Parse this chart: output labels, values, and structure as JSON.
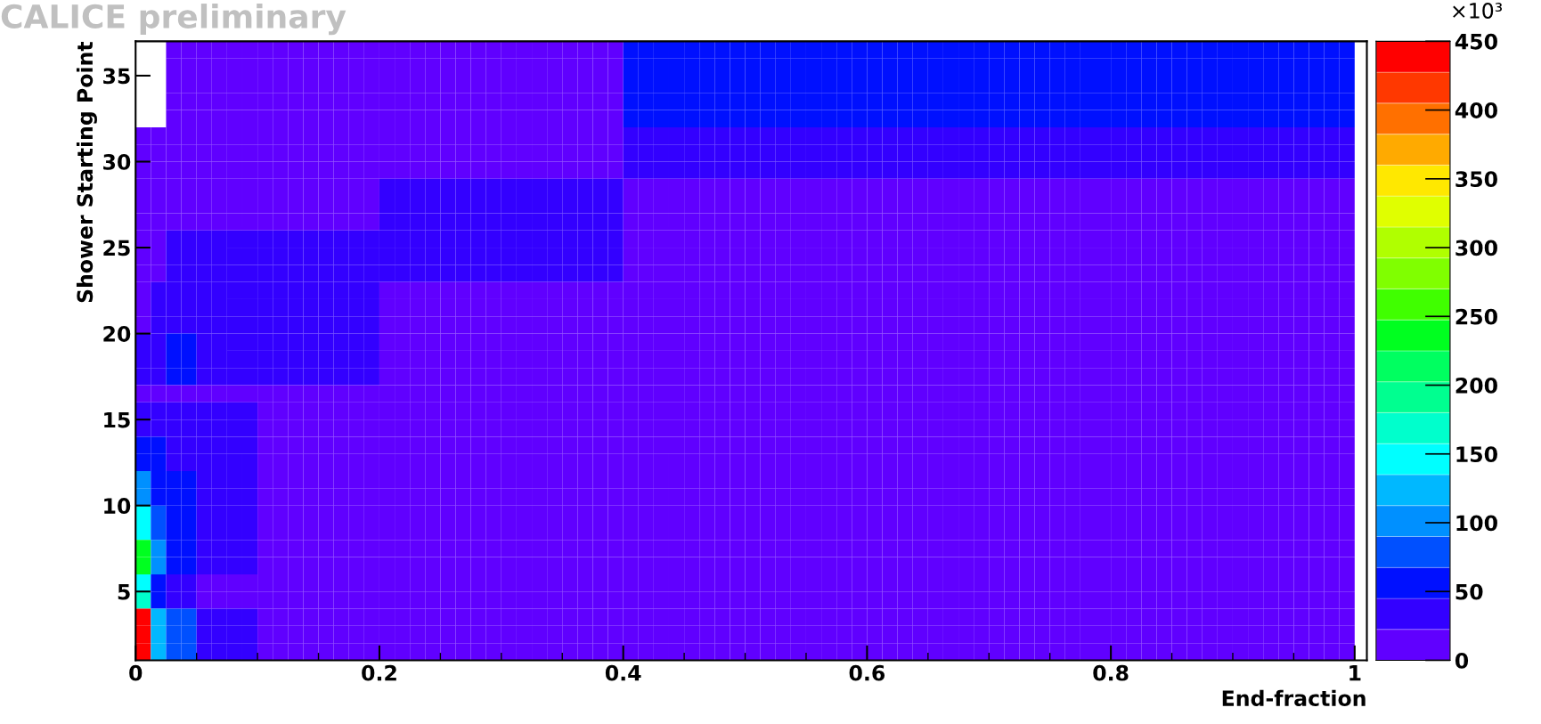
{
  "chart_data": {
    "type": "heatmap",
    "title": "CALICE preliminary",
    "xlabel": "End-fraction",
    "ylabel": "Shower Starting Point",
    "clabel": "×10³",
    "x": [
      0.00625,
      0.01875,
      0.03125,
      0.04375,
      0.05625,
      0.06875,
      0.08125,
      0.09375,
      0.10625,
      0.11875,
      0.13125,
      0.14375,
      0.15625,
      0.16875,
      0.18125,
      0.19375,
      0.20625,
      0.21875,
      0.23125,
      0.24375,
      0.25625,
      0.26875,
      0.28125,
      0.29375,
      0.30625,
      0.31875,
      0.33125,
      0.34375,
      0.35625,
      0.36875,
      0.38125,
      0.39375,
      0.40625,
      0.41875,
      0.43125,
      0.44375,
      0.45625,
      0.46875,
      0.48125,
      0.49375,
      0.50625,
      0.51875,
      0.53125,
      0.54375,
      0.55625,
      0.56875,
      0.58125,
      0.59375,
      0.60625,
      0.61875,
      0.63125,
      0.64375,
      0.65625,
      0.66875,
      0.68125,
      0.69375,
      0.70625,
      0.71875,
      0.73125,
      0.74375,
      0.75625,
      0.76875,
      0.78125,
      0.79375,
      0.80625,
      0.81875,
      0.83125,
      0.84375,
      0.85625,
      0.86875,
      0.88125,
      0.89375,
      0.90625,
      0.91875,
      0.93125,
      0.94375,
      0.95625,
      0.96875,
      0.98125,
      0.99375
    ],
    "y": [
      36.5,
      35.5,
      34.5,
      33.5,
      32.5,
      31.5,
      30.5,
      29.5,
      28.5,
      27.5,
      26.5,
      25.5,
      24.5,
      23.5,
      22.5,
      21.5,
      20.5,
      19.5,
      18.5,
      17.5,
      16.5,
      15.5,
      14.5,
      13.5,
      12.5,
      11.5,
      10.5,
      9.5,
      8.5,
      7.5,
      6.5,
      5.5,
      4.5,
      3.5,
      2.5,
      1.5
    ],
    "cells": [
      [
        null,
        null,
        11,
        11,
        11,
        11,
        11,
        11,
        11,
        11,
        11,
        11,
        11,
        11,
        11,
        11,
        11,
        11,
        11,
        11,
        11,
        11,
        11,
        11,
        11,
        11,
        11,
        11,
        11,
        11,
        11,
        11,
        56,
        56,
        56,
        56,
        56,
        56,
        56,
        56,
        56,
        56,
        56,
        56,
        56,
        56,
        56,
        56,
        56,
        56,
        56,
        56,
        56,
        56,
        56,
        56,
        56,
        56,
        56,
        56,
        56,
        56,
        56,
        56,
        56,
        56,
        56,
        56,
        56,
        56,
        56,
        56,
        56,
        56,
        56,
        56,
        56,
        56,
        56,
        56
      ],
      [
        null,
        null,
        11,
        11,
        11,
        11,
        11,
        11,
        11,
        11,
        11,
        11,
        11,
        11,
        11,
        11,
        11,
        11,
        11,
        11,
        11,
        11,
        11,
        11,
        11,
        11,
        11,
        11,
        11,
        11,
        11,
        11,
        56,
        56,
        56,
        56,
        56,
        56,
        56,
        56,
        56,
        56,
        56,
        56,
        56,
        56,
        56,
        56,
        56,
        56,
        56,
        56,
        56,
        56,
        56,
        56,
        56,
        56,
        56,
        56,
        56,
        56,
        56,
        56,
        56,
        56,
        56,
        56,
        56,
        56,
        56,
        56,
        56,
        56,
        56,
        56,
        56,
        56,
        56,
        56
      ],
      [
        null,
        null,
        11,
        11,
        11,
        11,
        11,
        11,
        11,
        11,
        11,
        11,
        11,
        11,
        11,
        11,
        11,
        11,
        11,
        11,
        11,
        11,
        11,
        11,
        11,
        11,
        11,
        11,
        11,
        11,
        11,
        11,
        56,
        56,
        56,
        56,
        56,
        56,
        56,
        56,
        56,
        56,
        56,
        56,
        56,
        56,
        56,
        56,
        56,
        56,
        56,
        56,
        56,
        56,
        56,
        56,
        56,
        56,
        56,
        56,
        56,
        56,
        56,
        56,
        56,
        56,
        56,
        56,
        56,
        56,
        56,
        56,
        56,
        56,
        56,
        56,
        56,
        56,
        56,
        56
      ],
      [
        null,
        null,
        11,
        11,
        11,
        11,
        11,
        11,
        11,
        11,
        11,
        11,
        11,
        11,
        11,
        11,
        11,
        11,
        11,
        11,
        11,
        11,
        11,
        11,
        11,
        11,
        11,
        11,
        11,
        11,
        11,
        11,
        56,
        56,
        56,
        56,
        56,
        56,
        56,
        56,
        56,
        56,
        56,
        56,
        56,
        56,
        56,
        56,
        56,
        56,
        56,
        56,
        56,
        56,
        56,
        56,
        56,
        56,
        56,
        56,
        56,
        56,
        56,
        56,
        56,
        56,
        56,
        56,
        56,
        56,
        56,
        56,
        56,
        56,
        56,
        56,
        56,
        56,
        56,
        56
      ],
      [
        null,
        null,
        11,
        11,
        11,
        11,
        11,
        11,
        11,
        11,
        11,
        11,
        11,
        11,
        11,
        11,
        11,
        11,
        11,
        11,
        11,
        11,
        11,
        11,
        11,
        11,
        11,
        11,
        11,
        11,
        11,
        11,
        56,
        56,
        56,
        56,
        56,
        56,
        56,
        56,
        56,
        56,
        56,
        56,
        56,
        56,
        56,
        56,
        56,
        56,
        56,
        56,
        56,
        56,
        56,
        56,
        56,
        56,
        56,
        56,
        56,
        56,
        56,
        56,
        56,
        56,
        56,
        56,
        56,
        56,
        56,
        56,
        56,
        56,
        56,
        56,
        56,
        56,
        56,
        56
      ],
      [
        11,
        11,
        11,
        11,
        11,
        11,
        11,
        11,
        11,
        11,
        11,
        11,
        11,
        11,
        11,
        11,
        11,
        11,
        11,
        11,
        11,
        11,
        11,
        11,
        11,
        11,
        11,
        11,
        11,
        11,
        11,
        11,
        34,
        34,
        34,
        34,
        34,
        34,
        34,
        34,
        34,
        34,
        34,
        34,
        34,
        34,
        34,
        34,
        34,
        34,
        34,
        34,
        34,
        34,
        34,
        34,
        34,
        34,
        34,
        34,
        34,
        34,
        34,
        34,
        34,
        34,
        34,
        34,
        34,
        34,
        34,
        34,
        34,
        34,
        34,
        34,
        34,
        34,
        34,
        34
      ],
      [
        11,
        11,
        11,
        11,
        11,
        11,
        11,
        11,
        11,
        11,
        11,
        11,
        11,
        11,
        11,
        11,
        11,
        11,
        11,
        11,
        11,
        11,
        11,
        11,
        11,
        11,
        11,
        11,
        11,
        11,
        11,
        11,
        34,
        34,
        34,
        34,
        34,
        34,
        34,
        34,
        34,
        34,
        34,
        34,
        34,
        34,
        34,
        34,
        34,
        34,
        34,
        34,
        34,
        34,
        34,
        34,
        34,
        34,
        34,
        34,
        34,
        34,
        34,
        34,
        34,
        34,
        34,
        34,
        34,
        34,
        34,
        34,
        34,
        34,
        34,
        34,
        34,
        34,
        34,
        34
      ],
      [
        11,
        11,
        11,
        11,
        11,
        11,
        11,
        11,
        11,
        11,
        11,
        11,
        11,
        11,
        11,
        11,
        11,
        11,
        11,
        11,
        11,
        11,
        11,
        11,
        11,
        11,
        11,
        11,
        11,
        11,
        11,
        11,
        34,
        34,
        34,
        34,
        34,
        34,
        34,
        34,
        34,
        34,
        34,
        34,
        34,
        34,
        34,
        34,
        34,
        34,
        34,
        34,
        34,
        34,
        34,
        34,
        34,
        34,
        34,
        34,
        34,
        34,
        34,
        34,
        34,
        34,
        34,
        34,
        34,
        34,
        34,
        34,
        34,
        34,
        34,
        34,
        34,
        34,
        34,
        34
      ],
      [
        11,
        11,
        11,
        11,
        11,
        11,
        11,
        11,
        11,
        11,
        11,
        11,
        11,
        11,
        11,
        11,
        34,
        34,
        34,
        34,
        34,
        34,
        34,
        34,
        34,
        34,
        34,
        34,
        34,
        34,
        34,
        34,
        11,
        11,
        11,
        11,
        11,
        11,
        11,
        11,
        11,
        11,
        11,
        11,
        11,
        11,
        11,
        11,
        11,
        11,
        11,
        11,
        11,
        11,
        11,
        11,
        11,
        11,
        11,
        11,
        11,
        11,
        11,
        11,
        11,
        11,
        11,
        11,
        11,
        11,
        11,
        11,
        11,
        11,
        11,
        11,
        11,
        11,
        11,
        11
      ],
      [
        11,
        11,
        11,
        11,
        11,
        11,
        11,
        11,
        11,
        11,
        11,
        11,
        11,
        11,
        11,
        11,
        34,
        34,
        34,
        34,
        34,
        34,
        34,
        34,
        34,
        34,
        34,
        34,
        34,
        34,
        34,
        34,
        11,
        11,
        11,
        11,
        11,
        11,
        11,
        11,
        11,
        11,
        11,
        11,
        11,
        11,
        11,
        11,
        11,
        11,
        11,
        11,
        11,
        11,
        11,
        11,
        11,
        11,
        11,
        11,
        11,
        11,
        11,
        11,
        11,
        11,
        11,
        11,
        11,
        11,
        11,
        11,
        11,
        11,
        11,
        11,
        11,
        11,
        11,
        11
      ],
      [
        11,
        11,
        11,
        11,
        11,
        11,
        11,
        11,
        11,
        11,
        11,
        11,
        11,
        11,
        11,
        11,
        34,
        34,
        34,
        34,
        34,
        34,
        34,
        34,
        34,
        34,
        34,
        34,
        34,
        34,
        34,
        34,
        11,
        11,
        11,
        11,
        11,
        11,
        11,
        11,
        11,
        11,
        11,
        11,
        11,
        11,
        11,
        11,
        11,
        11,
        11,
        11,
        11,
        11,
        11,
        11,
        11,
        11,
        11,
        11,
        11,
        11,
        11,
        11,
        11,
        11,
        11,
        11,
        11,
        11,
        11,
        11,
        11,
        11,
        11,
        11,
        11,
        11,
        11,
        11
      ],
      [
        11,
        11,
        34,
        34,
        34,
        34,
        34,
        34,
        34,
        34,
        34,
        34,
        34,
        34,
        34,
        34,
        34,
        34,
        34,
        34,
        34,
        34,
        34,
        34,
        34,
        34,
        34,
        34,
        34,
        34,
        34,
        34,
        11,
        11,
        11,
        11,
        11,
        11,
        11,
        11,
        11,
        11,
        11,
        11,
        11,
        11,
        11,
        11,
        11,
        11,
        11,
        11,
        11,
        11,
        11,
        11,
        11,
        11,
        11,
        11,
        11,
        11,
        11,
        11,
        11,
        11,
        11,
        11,
        11,
        11,
        11,
        11,
        11,
        11,
        11,
        11,
        11,
        11,
        11,
        11
      ],
      [
        11,
        11,
        34,
        34,
        34,
        34,
        34,
        34,
        34,
        34,
        34,
        34,
        34,
        34,
        34,
        34,
        34,
        34,
        34,
        34,
        34,
        34,
        34,
        34,
        34,
        34,
        34,
        34,
        34,
        34,
        34,
        34,
        11,
        11,
        11,
        11,
        11,
        11,
        11,
        11,
        11,
        11,
        11,
        11,
        11,
        11,
        11,
        11,
        11,
        11,
        11,
        11,
        11,
        11,
        11,
        11,
        11,
        11,
        11,
        11,
        11,
        11,
        11,
        11,
        11,
        11,
        11,
        11,
        11,
        11,
        11,
        11,
        11,
        11,
        11,
        11,
        11,
        11,
        11,
        11
      ],
      [
        11,
        11,
        34,
        34,
        34,
        34,
        34,
        34,
        34,
        34,
        34,
        34,
        34,
        34,
        34,
        34,
        34,
        34,
        34,
        34,
        34,
        34,
        34,
        34,
        34,
        34,
        34,
        34,
        34,
        34,
        34,
        34,
        11,
        11,
        11,
        11,
        11,
        11,
        11,
        11,
        11,
        11,
        11,
        11,
        11,
        11,
        11,
        11,
        11,
        11,
        11,
        11,
        11,
        11,
        11,
        11,
        11,
        11,
        11,
        11,
        11,
        11,
        11,
        11,
        11,
        11,
        11,
        11,
        11,
        11,
        11,
        11,
        11,
        11,
        11,
        11,
        11,
        11,
        11,
        11
      ],
      [
        11,
        34,
        34,
        34,
        34,
        34,
        34,
        34,
        34,
        34,
        34,
        34,
        34,
        34,
        34,
        34,
        11,
        11,
        11,
        11,
        11,
        11,
        11,
        11,
        11,
        11,
        11,
        11,
        11,
        11,
        11,
        11,
        11,
        11,
        11,
        11,
        11,
        11,
        11,
        11,
        11,
        11,
        11,
        11,
        11,
        11,
        11,
        11,
        11,
        11,
        11,
        11,
        11,
        11,
        11,
        11,
        11,
        11,
        11,
        11,
        11,
        11,
        11,
        11,
        11,
        11,
        11,
        11,
        11,
        11,
        11,
        11,
        11,
        11,
        11,
        11,
        11,
        11,
        11,
        11
      ],
      [
        11,
        34,
        34,
        34,
        34,
        34,
        34,
        34,
        34,
        34,
        34,
        34,
        34,
        34,
        34,
        34,
        11,
        11,
        11,
        11,
        11,
        11,
        11,
        11,
        11,
        11,
        11,
        11,
        11,
        11,
        11,
        11,
        11,
        11,
        11,
        11,
        11,
        11,
        11,
        11,
        11,
        11,
        11,
        11,
        11,
        11,
        11,
        11,
        11,
        11,
        11,
        11,
        11,
        11,
        11,
        11,
        11,
        11,
        11,
        11,
        11,
        11,
        11,
        11,
        11,
        11,
        11,
        11,
        11,
        11,
        11,
        11,
        11,
        11,
        11,
        11,
        11,
        11,
        11,
        11
      ],
      [
        11,
        34,
        34,
        34,
        34,
        34,
        34,
        34,
        34,
        34,
        34,
        34,
        34,
        34,
        34,
        34,
        11,
        11,
        11,
        11,
        11,
        11,
        11,
        11,
        11,
        11,
        11,
        11,
        11,
        11,
        11,
        11,
        11,
        11,
        11,
        11,
        11,
        11,
        11,
        11,
        11,
        11,
        11,
        11,
        11,
        11,
        11,
        11,
        11,
        11,
        11,
        11,
        11,
        11,
        11,
        11,
        11,
        11,
        11,
        11,
        11,
        11,
        11,
        11,
        11,
        11,
        11,
        11,
        11,
        11,
        11,
        11,
        11,
        11,
        11,
        11,
        11,
        11,
        11,
        11
      ],
      [
        34,
        34,
        56,
        56,
        34,
        34,
        34,
        34,
        34,
        34,
        34,
        34,
        34,
        34,
        34,
        34,
        11,
        11,
        11,
        11,
        11,
        11,
        11,
        11,
        11,
        11,
        11,
        11,
        11,
        11,
        11,
        11,
        11,
        11,
        11,
        11,
        11,
        11,
        11,
        11,
        11,
        11,
        11,
        11,
        11,
        11,
        11,
        11,
        11,
        11,
        11,
        11,
        11,
        11,
        11,
        11,
        11,
        11,
        11,
        11,
        11,
        11,
        11,
        11,
        11,
        11,
        11,
        11,
        11,
        11,
        11,
        11,
        11,
        11,
        11,
        11,
        11,
        11,
        11,
        11
      ],
      [
        34,
        34,
        56,
        56,
        34,
        34,
        34,
        34,
        34,
        34,
        34,
        34,
        34,
        34,
        34,
        34,
        11,
        11,
        11,
        11,
        11,
        11,
        11,
        11,
        11,
        11,
        11,
        11,
        11,
        11,
        11,
        11,
        11,
        11,
        11,
        11,
        11,
        11,
        11,
        11,
        11,
        11,
        11,
        11,
        11,
        11,
        11,
        11,
        11,
        11,
        11,
        11,
        11,
        11,
        11,
        11,
        11,
        11,
        11,
        11,
        11,
        11,
        11,
        11,
        11,
        11,
        11,
        11,
        11,
        11,
        11,
        11,
        11,
        11,
        11,
        11,
        11,
        11,
        11,
        11
      ],
      [
        34,
        34,
        56,
        56,
        34,
        34,
        34,
        34,
        34,
        34,
        34,
        34,
        34,
        34,
        34,
        34,
        11,
        11,
        11,
        11,
        11,
        11,
        11,
        11,
        11,
        11,
        11,
        11,
        11,
        11,
        11,
        11,
        11,
        11,
        11,
        11,
        11,
        11,
        11,
        11,
        11,
        11,
        11,
        11,
        11,
        11,
        11,
        11,
        11,
        11,
        11,
        11,
        11,
        11,
        11,
        11,
        11,
        11,
        11,
        11,
        11,
        11,
        11,
        11,
        11,
        11,
        11,
        11,
        11,
        11,
        11,
        11,
        11,
        11,
        11,
        11,
        11,
        11,
        11,
        11
      ],
      [
        11,
        11,
        11,
        11,
        11,
        11,
        11,
        11,
        11,
        11,
        11,
        11,
        11,
        11,
        11,
        11,
        11,
        11,
        11,
        11,
        11,
        11,
        11,
        11,
        11,
        11,
        11,
        11,
        11,
        11,
        11,
        11,
        11,
        11,
        11,
        11,
        11,
        11,
        11,
        11,
        11,
        11,
        11,
        11,
        11,
        11,
        11,
        11,
        11,
        11,
        11,
        11,
        11,
        11,
        11,
        11,
        11,
        11,
        11,
        11,
        11,
        11,
        11,
        11,
        11,
        11,
        11,
        11,
        11,
        11,
        11,
        11,
        11,
        11,
        11,
        11,
        11,
        11,
        11,
        11
      ],
      [
        34,
        34,
        34,
        34,
        34,
        34,
        34,
        34,
        11,
        11,
        11,
        11,
        11,
        11,
        11,
        11,
        11,
        11,
        11,
        11,
        11,
        11,
        11,
        11,
        11,
        11,
        11,
        11,
        11,
        11,
        11,
        11,
        11,
        11,
        11,
        11,
        11,
        11,
        11,
        11,
        11,
        11,
        11,
        11,
        11,
        11,
        11,
        11,
        11,
        11,
        11,
        11,
        11,
        11,
        11,
        11,
        11,
        11,
        11,
        11,
        11,
        11,
        11,
        11,
        11,
        11,
        11,
        11,
        11,
        11,
        11,
        11,
        11,
        11,
        11,
        11,
        11,
        11,
        11,
        11
      ],
      [
        34,
        34,
        34,
        34,
        34,
        34,
        34,
        34,
        11,
        11,
        11,
        11,
        11,
        11,
        11,
        11,
        11,
        11,
        11,
        11,
        11,
        11,
        11,
        11,
        11,
        11,
        11,
        11,
        11,
        11,
        11,
        11,
        11,
        11,
        11,
        11,
        11,
        11,
        11,
        11,
        11,
        11,
        11,
        11,
        11,
        11,
        11,
        11,
        11,
        11,
        11,
        11,
        11,
        11,
        11,
        11,
        11,
        11,
        11,
        11,
        11,
        11,
        11,
        11,
        11,
        11,
        11,
        11,
        11,
        11,
        11,
        11,
        11,
        11,
        11,
        11,
        11,
        11,
        11,
        11
      ],
      [
        56,
        56,
        34,
        34,
        34,
        34,
        34,
        34,
        11,
        11,
        11,
        11,
        11,
        11,
        11,
        11,
        11,
        11,
        11,
        11,
        11,
        11,
        11,
        11,
        11,
        11,
        11,
        11,
        11,
        11,
        11,
        11,
        11,
        11,
        11,
        11,
        11,
        11,
        11,
        11,
        11,
        11,
        11,
        11,
        11,
        11,
        11,
        11,
        11,
        11,
        11,
        11,
        11,
        11,
        11,
        11,
        11,
        11,
        11,
        11,
        11,
        11,
        11,
        11,
        11,
        11,
        11,
        11,
        11,
        11,
        11,
        11,
        11,
        11,
        11,
        11,
        11,
        11,
        11,
        11
      ],
      [
        56,
        56,
        34,
        34,
        34,
        34,
        34,
        34,
        11,
        11,
        11,
        11,
        11,
        11,
        11,
        11,
        11,
        11,
        11,
        11,
        11,
        11,
        11,
        11,
        11,
        11,
        11,
        11,
        11,
        11,
        11,
        11,
        11,
        11,
        11,
        11,
        11,
        11,
        11,
        11,
        11,
        11,
        11,
        11,
        11,
        11,
        11,
        11,
        11,
        11,
        11,
        11,
        11,
        11,
        11,
        11,
        11,
        11,
        11,
        11,
        11,
        11,
        11,
        11,
        11,
        11,
        11,
        11,
        11,
        11,
        11,
        11,
        11,
        11,
        11,
        11,
        11,
        11,
        11,
        11
      ],
      [
        101,
        56,
        56,
        56,
        34,
        34,
        34,
        34,
        11,
        11,
        11,
        11,
        11,
        11,
        11,
        11,
        11,
        11,
        11,
        11,
        11,
        11,
        11,
        11,
        11,
        11,
        11,
        11,
        11,
        11,
        11,
        11,
        11,
        11,
        11,
        11,
        11,
        11,
        11,
        11,
        11,
        11,
        11,
        11,
        11,
        11,
        11,
        11,
        11,
        11,
        11,
        11,
        11,
        11,
        11,
        11,
        11,
        11,
        11,
        11,
        11,
        11,
        11,
        11,
        11,
        11,
        11,
        11,
        11,
        11,
        11,
        11,
        11,
        11,
        11,
        11,
        11,
        11,
        11,
        11
      ],
      [
        101,
        56,
        56,
        56,
        34,
        34,
        34,
        34,
        11,
        11,
        11,
        11,
        11,
        11,
        11,
        11,
        11,
        11,
        11,
        11,
        11,
        11,
        11,
        11,
        11,
        11,
        11,
        11,
        11,
        11,
        11,
        11,
        11,
        11,
        11,
        11,
        11,
        11,
        11,
        11,
        11,
        11,
        11,
        11,
        11,
        11,
        11,
        11,
        11,
        11,
        11,
        11,
        11,
        11,
        11,
        11,
        11,
        11,
        11,
        11,
        11,
        11,
        11,
        11,
        11,
        11,
        11,
        11,
        11,
        11,
        11,
        11,
        11,
        11,
        11,
        11,
        11,
        11,
        11,
        11
      ],
      [
        146,
        79,
        56,
        56,
        34,
        34,
        34,
        34,
        11,
        11,
        11,
        11,
        11,
        11,
        11,
        11,
        11,
        11,
        11,
        11,
        11,
        11,
        11,
        11,
        11,
        11,
        11,
        11,
        11,
        11,
        11,
        11,
        11,
        11,
        11,
        11,
        11,
        11,
        11,
        11,
        11,
        11,
        11,
        11,
        11,
        11,
        11,
        11,
        11,
        11,
        11,
        11,
        11,
        11,
        11,
        11,
        11,
        11,
        11,
        11,
        11,
        11,
        11,
        11,
        11,
        11,
        11,
        11,
        11,
        11,
        11,
        11,
        11,
        11,
        11,
        11,
        11,
        11,
        11,
        11
      ],
      [
        146,
        79,
        56,
        56,
        34,
        34,
        34,
        34,
        11,
        11,
        11,
        11,
        11,
        11,
        11,
        11,
        11,
        11,
        11,
        11,
        11,
        11,
        11,
        11,
        11,
        11,
        11,
        11,
        11,
        11,
        11,
        11,
        11,
        11,
        11,
        11,
        11,
        11,
        11,
        11,
        11,
        11,
        11,
        11,
        11,
        11,
        11,
        11,
        11,
        11,
        11,
        11,
        11,
        11,
        11,
        11,
        11,
        11,
        11,
        11,
        11,
        11,
        11,
        11,
        11,
        11,
        11,
        11,
        11,
        11,
        11,
        11,
        11,
        11,
        11,
        11,
        11,
        11,
        11,
        11
      ],
      [
        236,
        101,
        56,
        56,
        34,
        34,
        34,
        34,
        11,
        11,
        11,
        11,
        11,
        11,
        11,
        11,
        11,
        11,
        11,
        11,
        11,
        11,
        11,
        11,
        11,
        11,
        11,
        11,
        11,
        11,
        11,
        11,
        11,
        11,
        11,
        11,
        11,
        11,
        11,
        11,
        11,
        11,
        11,
        11,
        11,
        11,
        11,
        11,
        11,
        11,
        11,
        11,
        11,
        11,
        11,
        11,
        11,
        11,
        11,
        11,
        11,
        11,
        11,
        11,
        11,
        11,
        11,
        11,
        11,
        11,
        11,
        11,
        11,
        11,
        11,
        11,
        11,
        11,
        11,
        11
      ],
      [
        236,
        101,
        56,
        56,
        34,
        34,
        34,
        34,
        11,
        11,
        11,
        11,
        11,
        11,
        11,
        11,
        11,
        11,
        11,
        11,
        11,
        11,
        11,
        11,
        11,
        11,
        11,
        11,
        11,
        11,
        11,
        11,
        11,
        11,
        11,
        11,
        11,
        11,
        11,
        11,
        11,
        11,
        11,
        11,
        11,
        11,
        11,
        11,
        11,
        11,
        11,
        11,
        11,
        11,
        11,
        11,
        11,
        11,
        11,
        11,
        11,
        11,
        11,
        11,
        11,
        11,
        11,
        11,
        11,
        11,
        11,
        11,
        11,
        11,
        11,
        11,
        11,
        11,
        11,
        11
      ],
      [
        146,
        56,
        34,
        34,
        11,
        11,
        11,
        11,
        11,
        11,
        11,
        11,
        11,
        11,
        11,
        11,
        11,
        11,
        11,
        11,
        11,
        11,
        11,
        11,
        11,
        11,
        11,
        11,
        11,
        11,
        11,
        11,
        11,
        11,
        11,
        11,
        11,
        11,
        11,
        11,
        11,
        11,
        11,
        11,
        11,
        11,
        11,
        11,
        11,
        11,
        11,
        11,
        11,
        11,
        11,
        11,
        11,
        11,
        11,
        11,
        11,
        11,
        11,
        11,
        11,
        11,
        11,
        11,
        11,
        11,
        11,
        11,
        11,
        11,
        11,
        11,
        11,
        11,
        11,
        11
      ],
      [
        169,
        56,
        34,
        34,
        11,
        11,
        11,
        11,
        11,
        11,
        11,
        11,
        11,
        11,
        11,
        11,
        11,
        11,
        11,
        11,
        11,
        11,
        11,
        11,
        11,
        11,
        11,
        11,
        11,
        11,
        11,
        11,
        11,
        11,
        11,
        11,
        11,
        11,
        11,
        11,
        11,
        11,
        11,
        11,
        11,
        11,
        11,
        11,
        11,
        11,
        11,
        11,
        11,
        11,
        11,
        11,
        11,
        11,
        11,
        11,
        11,
        11,
        11,
        11,
        11,
        11,
        11,
        11,
        11,
        11,
        11,
        11,
        11,
        11,
        11,
        11,
        11,
        11,
        11,
        11
      ],
      [
        439,
        124,
        79,
        79,
        34,
        34,
        34,
        34,
        11,
        11,
        11,
        11,
        11,
        11,
        11,
        11,
        11,
        11,
        11,
        11,
        11,
        11,
        11,
        11,
        11,
        11,
        11,
        11,
        11,
        11,
        11,
        11,
        11,
        11,
        11,
        11,
        11,
        11,
        11,
        11,
        11,
        11,
        11,
        11,
        11,
        11,
        11,
        11,
        11,
        11,
        11,
        11,
        11,
        11,
        11,
        11,
        11,
        11,
        11,
        11,
        11,
        11,
        11,
        11,
        11,
        11,
        11,
        11,
        11,
        11,
        11,
        11,
        11,
        11,
        11,
        11,
        11,
        11,
        11,
        11
      ],
      [
        439,
        124,
        79,
        79,
        34,
        34,
        34,
        34,
        11,
        11,
        11,
        11,
        11,
        11,
        11,
        11,
        11,
        11,
        11,
        11,
        11,
        11,
        11,
        11,
        11,
        11,
        11,
        11,
        11,
        11,
        11,
        11,
        11,
        11,
        11,
        11,
        11,
        11,
        11,
        11,
        11,
        11,
        11,
        11,
        11,
        11,
        11,
        11,
        11,
        11,
        11,
        11,
        11,
        11,
        11,
        11,
        11,
        11,
        11,
        11,
        11,
        11,
        11,
        11,
        11,
        11,
        11,
        11,
        11,
        11,
        11,
        11,
        11,
        11,
        11,
        11,
        11,
        11,
        11,
        11
      ],
      [
        439,
        124,
        79,
        79,
        34,
        34,
        34,
        34,
        11,
        11,
        11,
        11,
        11,
        11,
        11,
        11,
        11,
        11,
        11,
        11,
        11,
        11,
        11,
        11,
        11,
        11,
        11,
        11,
        11,
        11,
        11,
        11,
        11,
        11,
        11,
        11,
        11,
        11,
        11,
        11,
        11,
        11,
        11,
        11,
        11,
        11,
        11,
        11,
        11,
        11,
        11,
        11,
        11,
        11,
        11,
        11,
        11,
        11,
        11,
        11,
        11,
        11,
        11,
        11,
        11,
        11,
        11,
        11,
        11,
        11,
        11,
        11,
        11,
        11,
        11,
        11,
        11,
        11,
        11,
        11
      ]
    ],
    "xlim": [
      0,
      1.01
    ],
    "ylim": [
      1,
      37
    ],
    "xticks": [
      0,
      0.2,
      0.4,
      0.6,
      0.8,
      1
    ],
    "yticks": [
      5,
      10,
      15,
      20,
      25,
      30,
      35
    ],
    "clim": [
      0,
      450
    ],
    "cticks": [
      0,
      50,
      100,
      150,
      200,
      250,
      300,
      350,
      400,
      450
    ]
  }
}
